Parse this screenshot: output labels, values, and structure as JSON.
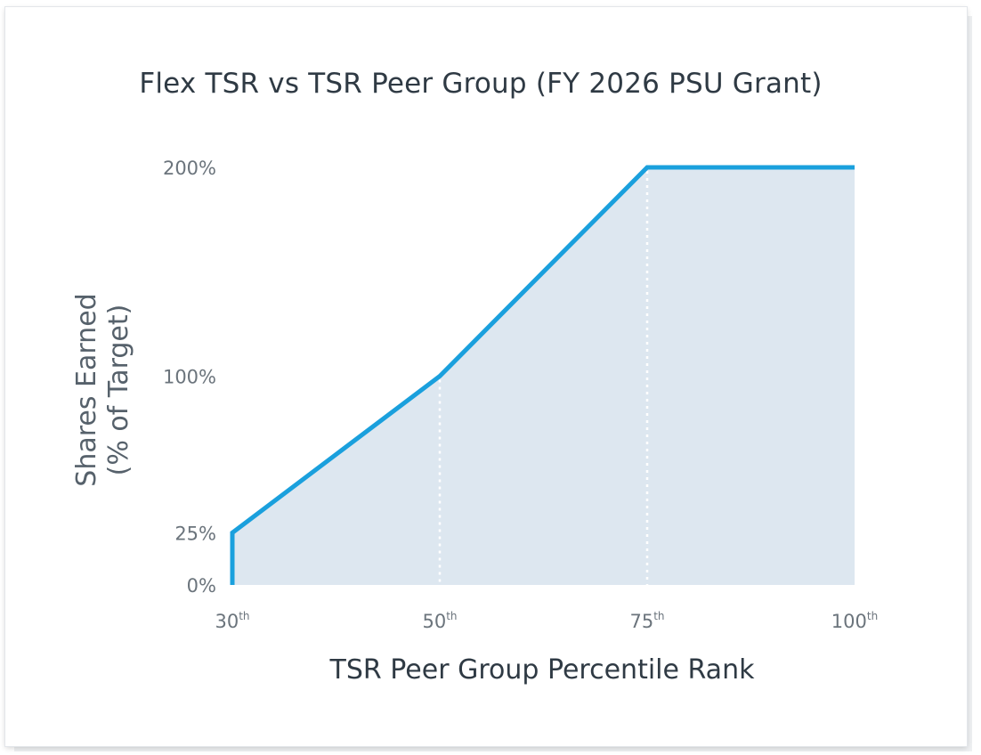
{
  "chart_data": {
    "type": "area",
    "title": "Flex TSR vs TSR Peer Group (FY 2026 PSU Grant)",
    "xlabel": "TSR Peer Group Percentile Rank",
    "ylabel_line1": "Shares Earned",
    "ylabel_line2": "(% of Target)",
    "x_ticks": [
      {
        "value": 30,
        "label": "30",
        "suffix": "th"
      },
      {
        "value": 50,
        "label": "50",
        "suffix": "th"
      },
      {
        "value": 75,
        "label": "75",
        "suffix": "th"
      },
      {
        "value": 100,
        "label": "100",
        "suffix": "th"
      }
    ],
    "y_ticks": [
      {
        "value": 0,
        "label": "0%"
      },
      {
        "value": 25,
        "label": "25%"
      },
      {
        "value": 100,
        "label": "100%"
      },
      {
        "value": 200,
        "label": "200%"
      }
    ],
    "x_scale": "categorical-ticks",
    "ylim": [
      0,
      200
    ],
    "series": [
      {
        "points": [
          {
            "x": 30,
            "y": 0
          },
          {
            "x": 30,
            "y": 25
          },
          {
            "x": 50,
            "y": 100
          },
          {
            "x": 75,
            "y": 200
          },
          {
            "x": 100,
            "y": 200
          }
        ]
      }
    ],
    "reference_lines_x": [
      50,
      75
    ],
    "grid": false,
    "colors": {
      "line": "#1aa0dd",
      "fill": "#dde7f0",
      "reference": "#ffffff"
    }
  }
}
